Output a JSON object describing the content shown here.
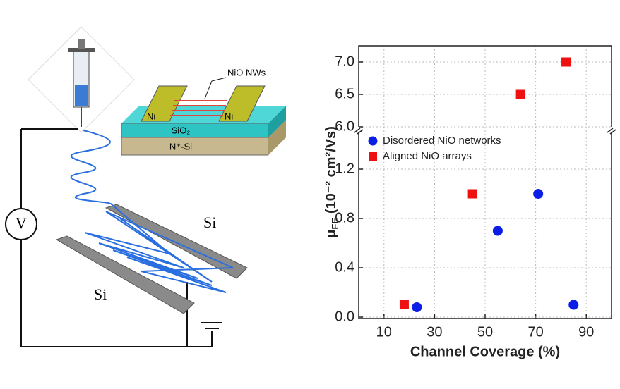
{
  "schematic": {
    "labels": [
      "NiO NWs",
      "Ni",
      "Ni",
      "SiO₂",
      "N⁺-Si",
      "V",
      "Si",
      "Si"
    ]
  },
  "chart_data": {
    "type": "scatter",
    "x_label": "Channel Coverage (%)",
    "y_label": {
      "symbol": "μ",
      "subscript": "FE",
      "text": "(10⁻² cm²/Vs)"
    },
    "xlim": [
      0,
      100
    ],
    "xticks": [
      10,
      30,
      50,
      70,
      90
    ],
    "y_segments": [
      {
        "ylim": [
          0,
          1.5
        ],
        "yticks": [
          {
            "value": 0,
            "label": "0.0"
          },
          0.4,
          0.8,
          1.2
        ]
      },
      {
        "ylim": [
          6.0,
          7.25
        ],
        "yticks": [
          {
            "value": 6.0,
            "label": "6.0"
          },
          6.5,
          {
            "value": 7.0,
            "label": "7.0"
          }
        ]
      }
    ],
    "grid": true,
    "legend": "upper left",
    "series": [
      {
        "name": "Disordered NiO networks",
        "color": "#0a1ee6",
        "marker": "circle",
        "x": [
          23,
          55,
          71,
          85
        ],
        "values": [
          0.08,
          0.7,
          1.0,
          0.1
        ]
      },
      {
        "name": "Aligned NiO arrays",
        "color": "#ee1111",
        "marker": "square",
        "x": [
          18,
          45,
          64,
          82
        ],
        "values": [
          0.1,
          1.0,
          6.5,
          7.0
        ]
      }
    ]
  }
}
